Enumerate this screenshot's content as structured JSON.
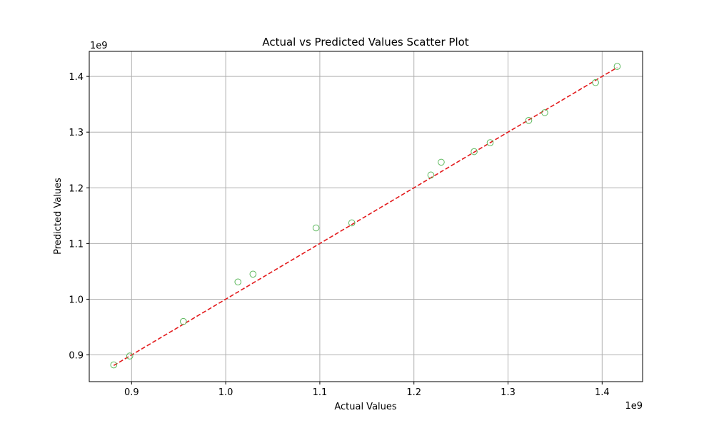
{
  "chart_data": {
    "type": "scatter",
    "title": "Actual vs Predicted Values Scatter Plot",
    "xlabel": "Actual Values",
    "ylabel": "Predicted Values",
    "x_offset_label": "1e9",
    "y_offset_label": "1e9",
    "x_scale": 1000000000,
    "y_scale": 1000000000,
    "xlim": [
      0.855,
      1.443
    ],
    "ylim": [
      0.852,
      1.445
    ],
    "x_ticks": [
      0.9,
      1.0,
      1.1,
      1.2,
      1.3,
      1.4
    ],
    "x_tick_labels": [
      "0.9",
      "1.0",
      "1.1",
      "1.2",
      "1.3",
      "1.4"
    ],
    "y_ticks": [
      0.9,
      1.0,
      1.1,
      1.2,
      1.3,
      1.4
    ],
    "y_tick_labels": [
      "0.9",
      "1.0",
      "1.1",
      "1.2",
      "1.3",
      "1.4"
    ],
    "grid": true,
    "marker_color": "#5cb85c",
    "line_color": "#e31a1c",
    "points": [
      {
        "x": 0.881,
        "y": 0.882
      },
      {
        "x": 0.898,
        "y": 0.898
      },
      {
        "x": 0.955,
        "y": 0.96
      },
      {
        "x": 1.013,
        "y": 1.031
      },
      {
        "x": 1.029,
        "y": 1.045
      },
      {
        "x": 1.096,
        "y": 1.128
      },
      {
        "x": 1.134,
        "y": 1.137
      },
      {
        "x": 1.218,
        "y": 1.223
      },
      {
        "x": 1.229,
        "y": 1.246
      },
      {
        "x": 1.264,
        "y": 1.265
      },
      {
        "x": 1.281,
        "y": 1.281
      },
      {
        "x": 1.322,
        "y": 1.321
      },
      {
        "x": 1.339,
        "y": 1.335
      },
      {
        "x": 1.393,
        "y": 1.389
      },
      {
        "x": 1.416,
        "y": 1.418
      }
    ],
    "reference_line": {
      "x": [
        0.881,
        1.416
      ],
      "y": [
        0.881,
        1.416
      ]
    }
  }
}
